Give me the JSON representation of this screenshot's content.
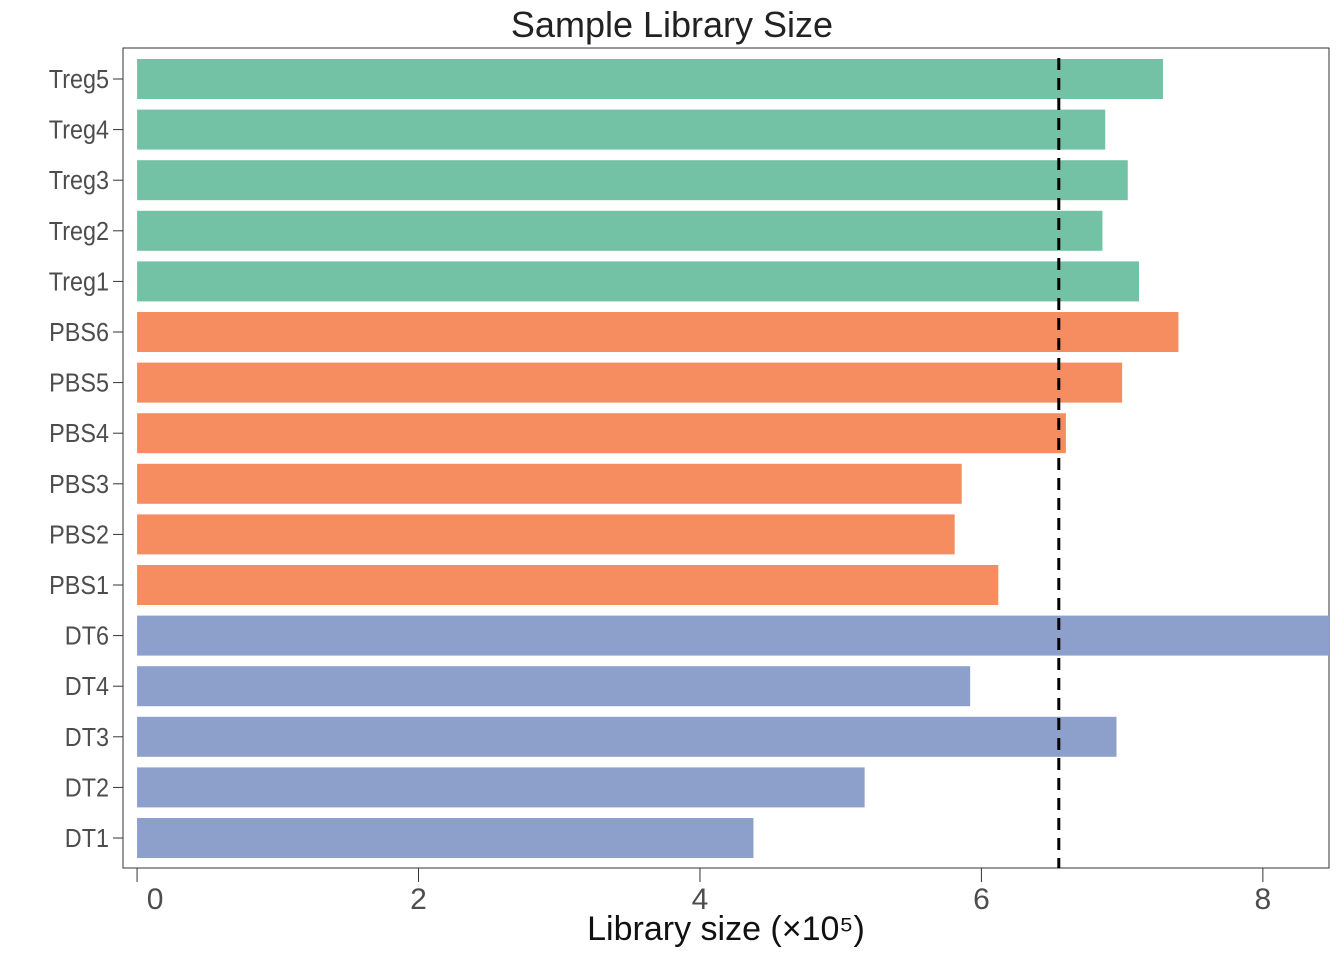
{
  "chart_data": {
    "type": "bar",
    "orientation": "horizontal",
    "title": "Sample Library Size",
    "xlabel": "Library size (×10⁵)",
    "ylabel": "",
    "categories": [
      "DT1",
      "DT2",
      "DT3",
      "DT4",
      "DT6",
      "PBS1",
      "PBS2",
      "PBS3",
      "PBS4",
      "PBS5",
      "PBS6",
      "Treg1",
      "Treg2",
      "Treg3",
      "Treg4",
      "Treg5"
    ],
    "values": [
      4.38,
      5.17,
      6.96,
      5.92,
      8.5,
      6.12,
      5.81,
      5.86,
      6.6,
      7.0,
      7.4,
      7.12,
      6.86,
      7.04,
      6.88,
      7.29
    ],
    "groups": [
      "DT",
      "DT",
      "DT",
      "DT",
      "DT",
      "PBS",
      "PBS",
      "PBS",
      "PBS",
      "PBS",
      "PBS",
      "Treg",
      "Treg",
      "Treg",
      "Treg",
      "Treg"
    ],
    "group_colors": {
      "DT": "#8DA0CB",
      "PBS": "#F58D60",
      "Treg": "#74C2A6"
    },
    "xlim": [
      -0.1,
      8.47
    ],
    "xticks": [
      0,
      2,
      4,
      6,
      8
    ],
    "reference_line": {
      "x": 6.55,
      "style": "dashed",
      "color": "#000000"
    },
    "grid": false,
    "legend": "none"
  }
}
